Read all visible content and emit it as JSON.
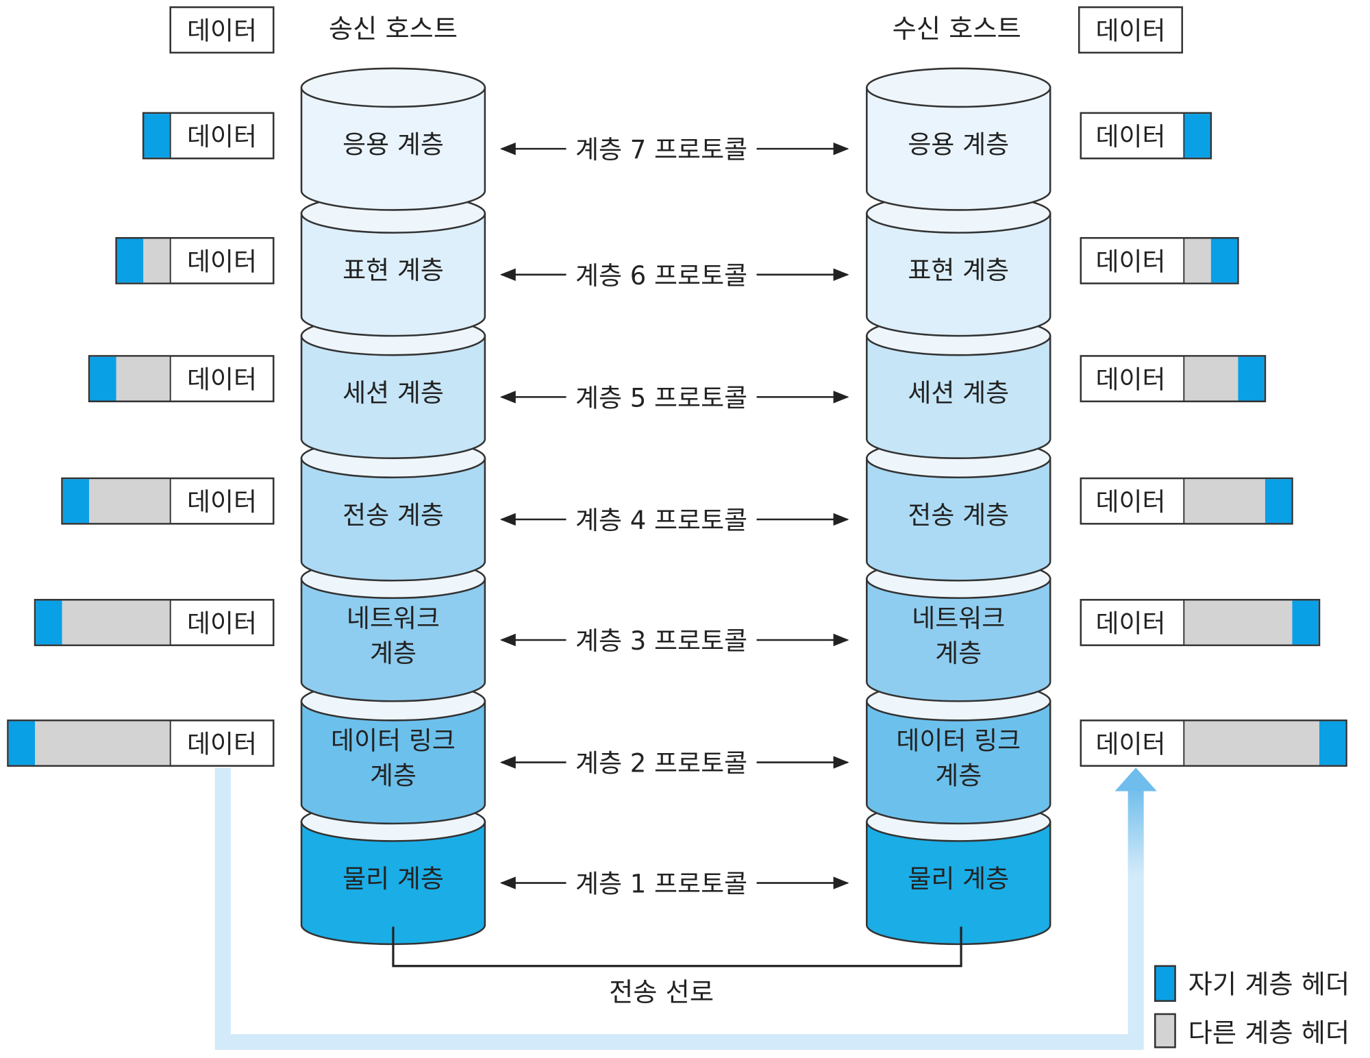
{
  "sender_title": "송신 호스트",
  "receiver_title": "수신 호스트",
  "data_label": "데이터",
  "layers": [
    {
      "number": 7,
      "name": [
        "응용 계층"
      ],
      "protocol": "계층 7 프로토콜",
      "color": "#eaf4fc"
    },
    {
      "number": 6,
      "name": [
        "표현 계층"
      ],
      "protocol": "계층 6 프로토콜",
      "color": "#ddeffa"
    },
    {
      "number": 5,
      "name": [
        "세션 계층"
      ],
      "protocol": "계층 5 프로토콜",
      "color": "#c6e5f7"
    },
    {
      "number": 4,
      "name": [
        "전송 계층"
      ],
      "protocol": "계층 4 프로토콜",
      "color": "#acdaf4"
    },
    {
      "number": 3,
      "name": [
        "네트워크",
        "계층"
      ],
      "protocol": "계층 3 프로토콜",
      "color": "#8fcdf0"
    },
    {
      "number": 2,
      "name": [
        "데이터 링크",
        "계층"
      ],
      "protocol": "계층 2 프로토콜",
      "color": "#6cc0ec"
    },
    {
      "number": 1,
      "name": [
        "물리 계층"
      ],
      "protocol": "계층 1 프로토콜",
      "color": "#1badE6"
    }
  ],
  "transmission_line_label": "전송 선로",
  "legend": {
    "own_header": {
      "label": "자기 계층 헤더",
      "color": "#0aa0e6"
    },
    "other_header": {
      "label": "다른 계층 헤더",
      "color": "#d3d3d3"
    }
  }
}
